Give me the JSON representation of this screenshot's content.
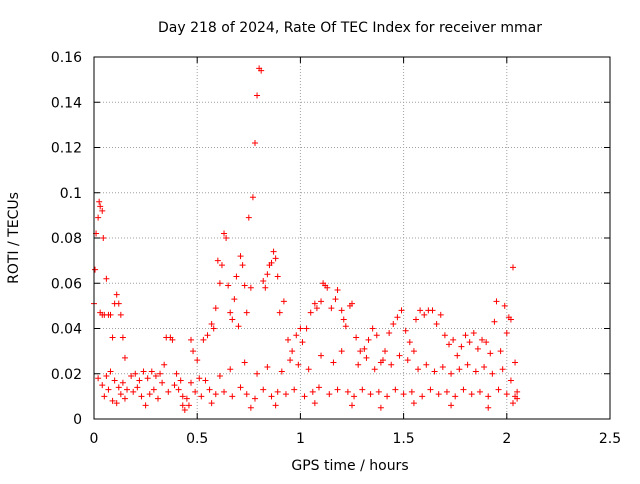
{
  "chart_data": {
    "type": "scatter",
    "title": "Day 218 of 2024, Rate Of TEC Index for receiver mmar",
    "xlabel": "GPS time / hours",
    "ylabel": "ROTI / TECUs",
    "xlim": [
      0,
      2.5
    ],
    "ylim": [
      0,
      0.16
    ],
    "x_ticks": [
      0,
      0.5,
      1,
      1.5,
      2,
      2.5
    ],
    "x_tick_labels": [
      "0",
      "0.5",
      "1",
      "1.5",
      "2",
      "2.5"
    ],
    "y_ticks": [
      0,
      0.02,
      0.04,
      0.06,
      0.08,
      0.1,
      0.12,
      0.14,
      0.16
    ],
    "y_tick_labels": [
      "0",
      "0.02",
      "0.04",
      "0.06",
      "0.08",
      "0.1",
      "0.12",
      "0.14",
      "0.16"
    ],
    "grid": true,
    "marker": "+",
    "series": [
      {
        "name": "ROTI",
        "color": "#ff0000",
        "points": [
          [
            0.0,
            0.051
          ],
          [
            0.005,
            0.066
          ],
          [
            0.01,
            0.082
          ],
          [
            0.02,
            0.089
          ],
          [
            0.025,
            0.096
          ],
          [
            0.03,
            0.094
          ],
          [
            0.04,
            0.092
          ],
          [
            0.045,
            0.08
          ],
          [
            0.03,
            0.047
          ],
          [
            0.04,
            0.046
          ],
          [
            0.05,
            0.046
          ],
          [
            0.06,
            0.062
          ],
          [
            0.07,
            0.046
          ],
          [
            0.08,
            0.046
          ],
          [
            0.09,
            0.036
          ],
          [
            0.1,
            0.051
          ],
          [
            0.11,
            0.055
          ],
          [
            0.12,
            0.051
          ],
          [
            0.13,
            0.046
          ],
          [
            0.14,
            0.036
          ],
          [
            0.15,
            0.027
          ],
          [
            0.02,
            0.018
          ],
          [
            0.04,
            0.015
          ],
          [
            0.06,
            0.019
          ],
          [
            0.08,
            0.021
          ],
          [
            0.1,
            0.017
          ],
          [
            0.12,
            0.014
          ],
          [
            0.14,
            0.016
          ],
          [
            0.16,
            0.013
          ],
          [
            0.18,
            0.019
          ],
          [
            0.2,
            0.02
          ],
          [
            0.22,
            0.017
          ],
          [
            0.24,
            0.021
          ],
          [
            0.26,
            0.018
          ],
          [
            0.28,
            0.021
          ],
          [
            0.3,
            0.019
          ],
          [
            0.32,
            0.02
          ],
          [
            0.34,
            0.024
          ],
          [
            0.35,
            0.036
          ],
          [
            0.37,
            0.036
          ],
          [
            0.38,
            0.035
          ],
          [
            0.4,
            0.02
          ],
          [
            0.42,
            0.017
          ],
          [
            0.43,
            0.01
          ],
          [
            0.44,
            0.004
          ],
          [
            0.46,
            0.006
          ],
          [
            0.47,
            0.035
          ],
          [
            0.48,
            0.03
          ],
          [
            0.5,
            0.026
          ],
          [
            0.51,
            0.018
          ],
          [
            0.53,
            0.035
          ],
          [
            0.55,
            0.037
          ],
          [
            0.57,
            0.042
          ],
          [
            0.58,
            0.04
          ],
          [
            0.59,
            0.049
          ],
          [
            0.6,
            0.07
          ],
          [
            0.61,
            0.06
          ],
          [
            0.62,
            0.068
          ],
          [
            0.63,
            0.082
          ],
          [
            0.64,
            0.08
          ],
          [
            0.65,
            0.059
          ],
          [
            0.66,
            0.047
          ],
          [
            0.67,
            0.044
          ],
          [
            0.68,
            0.053
          ],
          [
            0.69,
            0.063
          ],
          [
            0.7,
            0.041
          ],
          [
            0.71,
            0.072
          ],
          [
            0.72,
            0.068
          ],
          [
            0.73,
            0.059
          ],
          [
            0.74,
            0.047
          ],
          [
            0.75,
            0.089
          ],
          [
            0.76,
            0.058
          ],
          [
            0.77,
            0.098
          ],
          [
            0.78,
            0.122
          ],
          [
            0.79,
            0.143
          ],
          [
            0.8,
            0.155
          ],
          [
            0.81,
            0.154
          ],
          [
            0.82,
            0.061
          ],
          [
            0.83,
            0.058
          ],
          [
            0.84,
            0.064
          ],
          [
            0.85,
            0.068
          ],
          [
            0.86,
            0.069
          ],
          [
            0.87,
            0.074
          ],
          [
            0.88,
            0.071
          ],
          [
            0.89,
            0.063
          ],
          [
            0.9,
            0.047
          ],
          [
            0.92,
            0.052
          ],
          [
            0.94,
            0.035
          ],
          [
            0.96,
            0.03
          ],
          [
            0.98,
            0.037
          ],
          [
            1.0,
            0.04
          ],
          [
            1.01,
            0.034
          ],
          [
            1.03,
            0.04
          ],
          [
            1.05,
            0.047
          ],
          [
            1.07,
            0.051
          ],
          [
            1.08,
            0.049
          ],
          [
            1.1,
            0.052
          ],
          [
            1.11,
            0.06
          ],
          [
            1.12,
            0.059
          ],
          [
            1.13,
            0.058
          ],
          [
            1.15,
            0.049
          ],
          [
            1.17,
            0.053
          ],
          [
            1.18,
            0.057
          ],
          [
            1.2,
            0.048
          ],
          [
            1.21,
            0.044
          ],
          [
            1.22,
            0.041
          ],
          [
            1.24,
            0.05
          ],
          [
            1.25,
            0.051
          ],
          [
            1.27,
            0.036
          ],
          [
            1.29,
            0.03
          ],
          [
            1.31,
            0.031
          ],
          [
            1.33,
            0.035
          ],
          [
            1.35,
            0.04
          ],
          [
            1.37,
            0.037
          ],
          [
            1.39,
            0.025
          ],
          [
            1.41,
            0.03
          ],
          [
            1.43,
            0.038
          ],
          [
            1.45,
            0.042
          ],
          [
            1.47,
            0.045
          ],
          [
            1.49,
            0.048
          ],
          [
            1.51,
            0.039
          ],
          [
            1.53,
            0.034
          ],
          [
            1.55,
            0.03
          ],
          [
            1.56,
            0.044
          ],
          [
            1.58,
            0.048
          ],
          [
            1.6,
            0.046
          ],
          [
            1.62,
            0.048
          ],
          [
            1.64,
            0.048
          ],
          [
            1.66,
            0.042
          ],
          [
            1.68,
            0.046
          ],
          [
            1.7,
            0.037
          ],
          [
            1.72,
            0.033
          ],
          [
            1.74,
            0.035
          ],
          [
            1.76,
            0.028
          ],
          [
            1.78,
            0.032
          ],
          [
            1.8,
            0.037
          ],
          [
            1.82,
            0.034
          ],
          [
            1.84,
            0.038
          ],
          [
            1.86,
            0.031
          ],
          [
            1.88,
            0.035
          ],
          [
            1.9,
            0.034
          ],
          [
            1.92,
            0.029
          ],
          [
            1.94,
            0.043
          ],
          [
            1.95,
            0.052
          ],
          [
            1.97,
            0.03
          ],
          [
            1.99,
            0.05
          ],
          [
            2.0,
            0.038
          ],
          [
            2.01,
            0.045
          ],
          [
            2.02,
            0.044
          ],
          [
            2.03,
            0.067
          ],
          [
            2.04,
            0.025
          ],
          [
            2.05,
            0.012
          ],
          [
            0.05,
            0.01
          ],
          [
            0.09,
            0.008
          ],
          [
            0.15,
            0.009
          ],
          [
            0.19,
            0.012
          ],
          [
            0.23,
            0.01
          ],
          [
            0.27,
            0.011
          ],
          [
            0.31,
            0.009
          ],
          [
            0.36,
            0.012
          ],
          [
            0.41,
            0.013
          ],
          [
            0.45,
            0.009
          ],
          [
            0.49,
            0.012
          ],
          [
            0.52,
            0.01
          ],
          [
            0.56,
            0.013
          ],
          [
            0.59,
            0.011
          ],
          [
            0.63,
            0.012
          ],
          [
            0.67,
            0.01
          ],
          [
            0.71,
            0.014
          ],
          [
            0.74,
            0.011
          ],
          [
            0.78,
            0.009
          ],
          [
            0.82,
            0.013
          ],
          [
            0.86,
            0.01
          ],
          [
            0.89,
            0.012
          ],
          [
            0.93,
            0.011
          ],
          [
            0.97,
            0.013
          ],
          [
            1.02,
            0.01
          ],
          [
            1.06,
            0.012
          ],
          [
            1.09,
            0.014
          ],
          [
            1.14,
            0.011
          ],
          [
            1.18,
            0.013
          ],
          [
            1.23,
            0.012
          ],
          [
            1.26,
            0.01
          ],
          [
            1.3,
            0.013
          ],
          [
            1.34,
            0.011
          ],
          [
            1.38,
            0.012
          ],
          [
            1.42,
            0.01
          ],
          [
            1.46,
            0.013
          ],
          [
            1.5,
            0.011
          ],
          [
            1.54,
            0.012
          ],
          [
            1.59,
            0.01
          ],
          [
            1.63,
            0.013
          ],
          [
            1.67,
            0.011
          ],
          [
            1.71,
            0.012
          ],
          [
            1.75,
            0.01
          ],
          [
            1.79,
            0.013
          ],
          [
            1.83,
            0.011
          ],
          [
            1.87,
            0.012
          ],
          [
            1.91,
            0.01
          ],
          [
            1.96,
            0.013
          ],
          [
            2.0,
            0.011
          ],
          [
            2.04,
            0.01
          ],
          [
            0.07,
            0.013
          ],
          [
            0.13,
            0.011
          ],
          [
            0.21,
            0.014
          ],
          [
            0.29,
            0.013
          ],
          [
            0.33,
            0.016
          ],
          [
            0.39,
            0.015
          ],
          [
            0.47,
            0.016
          ],
          [
            0.54,
            0.017
          ],
          [
            0.61,
            0.019
          ],
          [
            0.66,
            0.022
          ],
          [
            0.73,
            0.025
          ],
          [
            0.79,
            0.02
          ],
          [
            0.84,
            0.023
          ],
          [
            0.91,
            0.021
          ],
          [
            0.95,
            0.026
          ],
          [
            0.99,
            0.024
          ],
          [
            1.04,
            0.022
          ],
          [
            1.1,
            0.028
          ],
          [
            1.16,
            0.025
          ],
          [
            1.2,
            0.03
          ],
          [
            1.28,
            0.024
          ],
          [
            1.32,
            0.027
          ],
          [
            1.36,
            0.022
          ],
          [
            1.4,
            0.026
          ],
          [
            1.44,
            0.024
          ],
          [
            1.48,
            0.028
          ],
          [
            1.52,
            0.026
          ],
          [
            1.57,
            0.022
          ],
          [
            1.61,
            0.024
          ],
          [
            1.65,
            0.021
          ],
          [
            1.69,
            0.023
          ],
          [
            1.73,
            0.02
          ],
          [
            1.77,
            0.022
          ],
          [
            1.81,
            0.024
          ],
          [
            1.85,
            0.021
          ],
          [
            1.89,
            0.023
          ],
          [
            1.93,
            0.02
          ],
          [
            1.98,
            0.022
          ],
          [
            2.02,
            0.017
          ],
          [
            2.05,
            0.009
          ],
          [
            0.11,
            0.007
          ],
          [
            0.25,
            0.006
          ],
          [
            0.43,
            0.006
          ],
          [
            0.57,
            0.007
          ],
          [
            0.76,
            0.005
          ],
          [
            0.88,
            0.006
          ],
          [
            1.07,
            0.007
          ],
          [
            1.25,
            0.006
          ],
          [
            1.39,
            0.005
          ],
          [
            1.55,
            0.007
          ],
          [
            1.73,
            0.006
          ],
          [
            1.91,
            0.005
          ],
          [
            2.03,
            0.007
          ]
        ]
      }
    ]
  }
}
